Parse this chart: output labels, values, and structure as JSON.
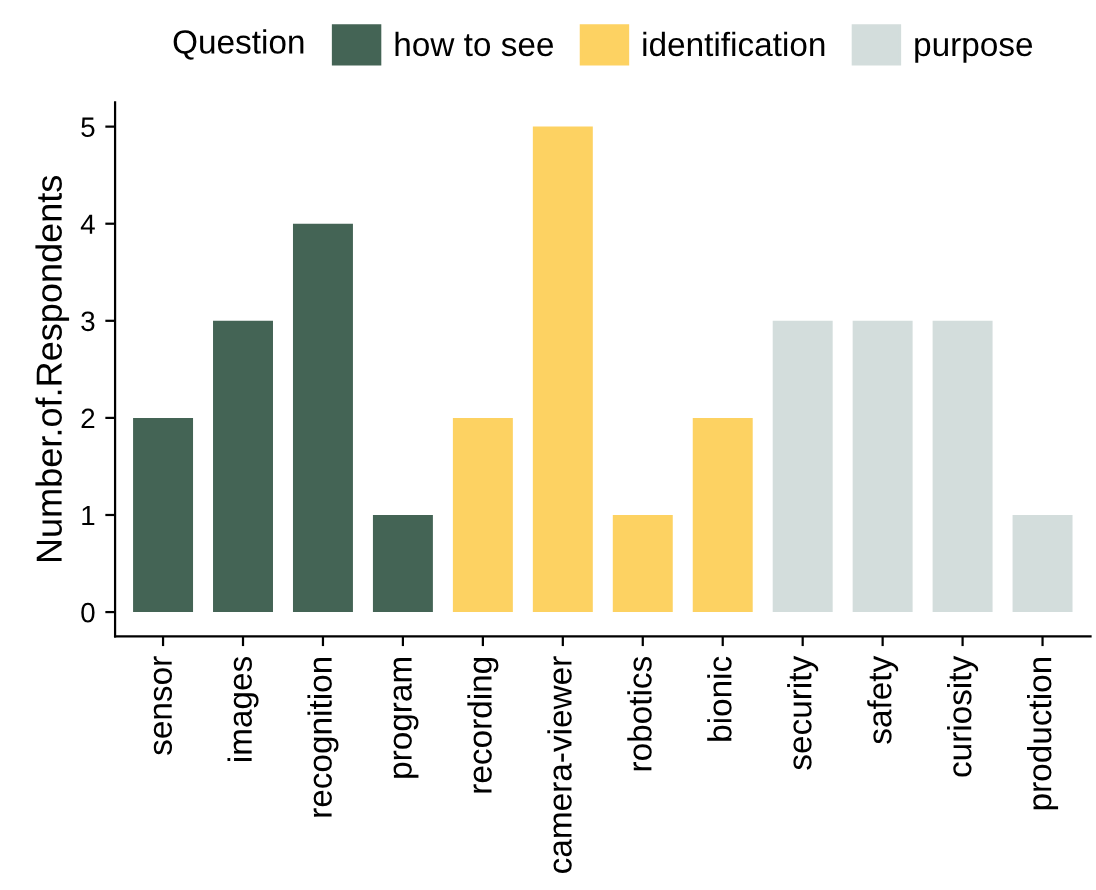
{
  "chart_data": {
    "type": "bar",
    "ylabel": "Number.of.Respondents",
    "legend_title": "Question",
    "legend": "top",
    "grid": false,
    "categories": [
      "sensor",
      "images",
      "recognition",
      "program",
      "recording",
      "camera-viewer",
      "robotics",
      "bionic",
      "security",
      "safety",
      "curiosity",
      "production"
    ],
    "series": [
      {
        "name": "how to see",
        "color": "#446455",
        "values": [
          2,
          3,
          4,
          1,
          null,
          null,
          null,
          null,
          null,
          null,
          null,
          null
        ]
      },
      {
        "name": "identification",
        "color": "#fdd262",
        "values": [
          null,
          null,
          null,
          null,
          2,
          5,
          1,
          2,
          null,
          null,
          null,
          null
        ]
      },
      {
        "name": "purpose",
        "color": "#d3dddc",
        "values": [
          null,
          null,
          null,
          null,
          null,
          null,
          null,
          null,
          3,
          3,
          3,
          1
        ]
      }
    ],
    "ylim": [
      -0.25,
      5.25
    ],
    "yticks": [
      0,
      1,
      2,
      3,
      4,
      5
    ]
  }
}
